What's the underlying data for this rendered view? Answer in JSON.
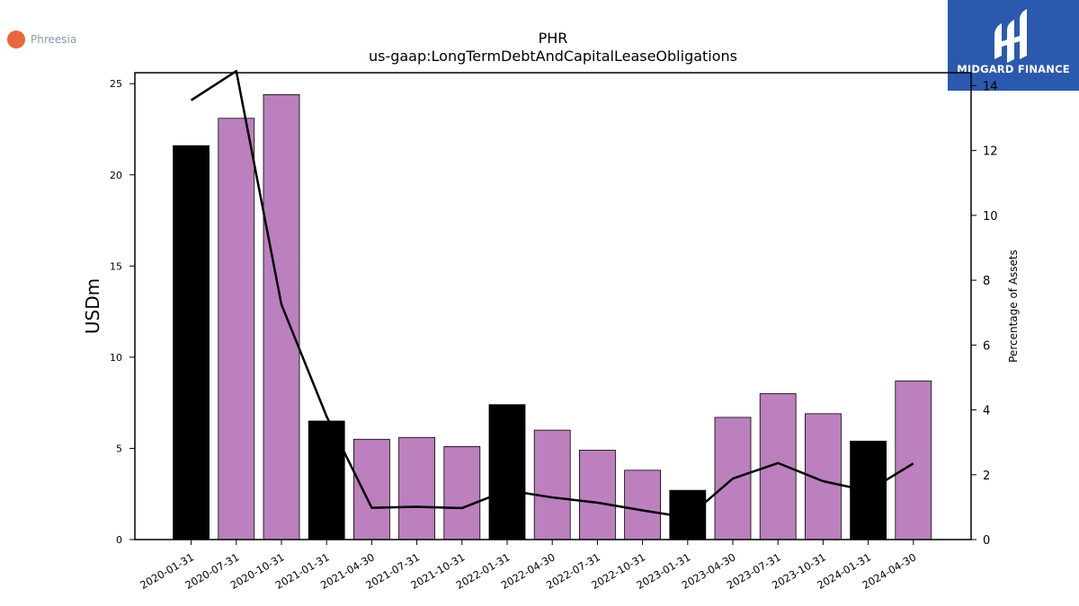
{
  "brand": {
    "name": "Phreesia",
    "color": "#e8673c"
  },
  "badge": {
    "label": "MIDGARD FINANCE",
    "color": "#2b59ad"
  },
  "chart_data": {
    "type": "bar",
    "title": "PHR",
    "subtitle": "us-gaap:LongTermDebtAndCapitalLeaseObligations",
    "ylabel": "USDm",
    "y2label": "Percentage of Assets",
    "ylim": [
      0,
      25.6
    ],
    "y2lim": [
      0,
      14.4
    ],
    "yticks": [
      0,
      5,
      10,
      15,
      20,
      25
    ],
    "y2ticks": [
      0,
      2,
      4,
      6,
      8,
      10,
      12,
      14
    ],
    "categories": [
      "2020-01-31",
      "2020-07-31",
      "2020-10-31",
      "2021-01-31",
      "2021-04-30",
      "2021-07-31",
      "2021-10-31",
      "2022-01-31",
      "2022-04-30",
      "2022-07-31",
      "2022-10-31",
      "2023-01-31",
      "2023-04-30",
      "2023-07-31",
      "2023-10-31",
      "2024-01-31",
      "2024-04-30"
    ],
    "series": [
      {
        "name": "",
        "kind": "bar",
        "axis": "left",
        "values": [
          21.6,
          23.1,
          24.4,
          6.5,
          5.5,
          5.6,
          5.1,
          7.4,
          6.0,
          4.9,
          3.8,
          2.7,
          6.7,
          8.0,
          6.9,
          5.4,
          8.7
        ],
        "colors": [
          "#000000",
          "#bb80bd",
          "#bb80bd",
          "#000000",
          "#bb80bd",
          "#bb80bd",
          "#bb80bd",
          "#000000",
          "#bb80bd",
          "#bb80bd",
          "#bb80bd",
          "#000000",
          "#bb80bd",
          "#bb80bd",
          "#bb80bd",
          "#000000",
          "#bb80bd"
        ]
      },
      {
        "name": "",
        "kind": "line",
        "axis": "right",
        "color": "#000000",
        "values": [
          13.55,
          14.45,
          7.25,
          3.8,
          0.98,
          1.01,
          0.97,
          1.52,
          1.3,
          1.14,
          0.9,
          0.68,
          1.88,
          2.36,
          1.8,
          1.5,
          2.35
        ]
      }
    ],
    "grid": false,
    "legend": "none"
  }
}
